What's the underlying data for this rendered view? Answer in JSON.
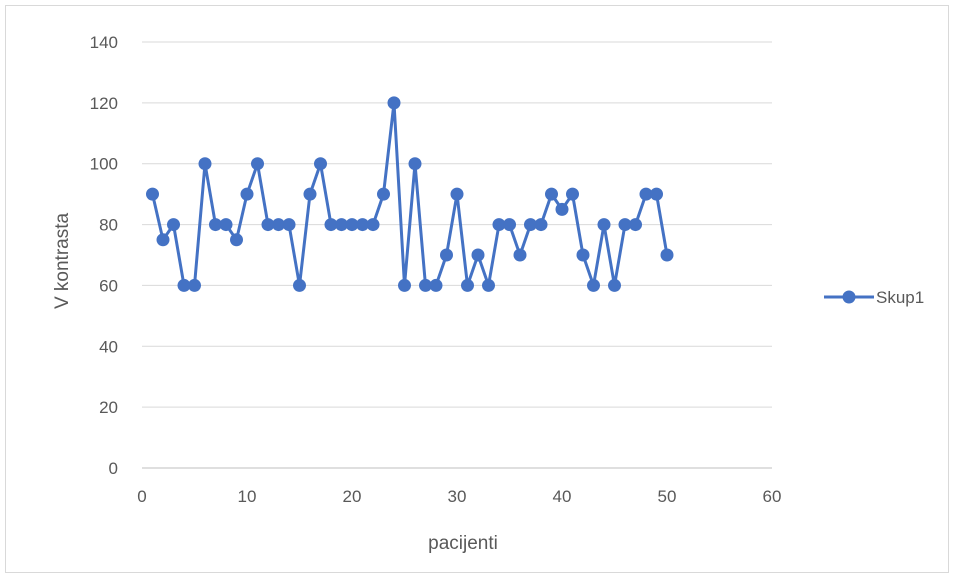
{
  "chart_data": {
    "type": "scatter",
    "xlabel": "pacijenti",
    "ylabel": "V kontrasta",
    "xlim": [
      0,
      60
    ],
    "ylim": [
      0,
      140
    ],
    "xticks": [
      0,
      10,
      20,
      30,
      40,
      50,
      60
    ],
    "yticks": [
      0,
      20,
      40,
      60,
      80,
      100,
      120,
      140
    ],
    "grid": "horizontal",
    "legend_position": "right",
    "series": [
      {
        "name": "Skup1",
        "color": "#4472c4",
        "x": [
          1,
          2,
          3,
          4,
          5,
          6,
          7,
          8,
          9,
          10,
          11,
          12,
          13,
          14,
          15,
          16,
          17,
          18,
          19,
          20,
          21,
          22,
          23,
          24,
          25,
          26,
          27,
          28,
          29,
          30,
          31,
          32,
          33,
          34,
          35,
          36,
          37,
          38,
          39,
          40,
          41,
          42,
          43,
          44,
          45,
          46,
          47,
          48,
          49,
          50
        ],
        "y": [
          90,
          75,
          80,
          60,
          60,
          100,
          80,
          80,
          75,
          90,
          100,
          80,
          80,
          80,
          60,
          90,
          100,
          80,
          80,
          80,
          80,
          80,
          90,
          120,
          60,
          100,
          60,
          60,
          70,
          90,
          60,
          70,
          60,
          80,
          80,
          70,
          80,
          80,
          90,
          85,
          90,
          70,
          60,
          80,
          60,
          80,
          80,
          90,
          90,
          70
        ]
      }
    ]
  }
}
